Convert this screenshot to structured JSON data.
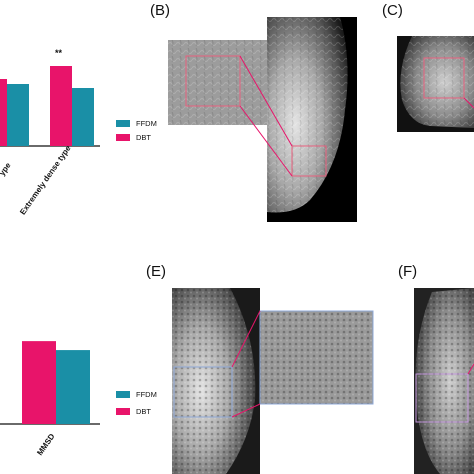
{
  "panels": {
    "b": "(B)",
    "c": "(C)",
    "e": "(E)",
    "f": "(F)"
  },
  "colors": {
    "ffdm": "#1a8fa6",
    "dbt": "#e8146a"
  },
  "legend_top": {
    "ffdm": "FFDM",
    "dbt": "DBT"
  },
  "legend_bottom": {
    "ffdm": "FFDM",
    "dbt": "DBT"
  },
  "significance": "**",
  "chart_data": [
    {
      "type": "bar",
      "categories": [
        "ype",
        "Extremely dense type"
      ],
      "series": [
        {
          "name": "FFDM",
          "values": [
            0.62,
            0.58
          ]
        },
        {
          "name": "DBT",
          "values": [
            0.67,
            0.8
          ]
        }
      ]
    },
    {
      "type": "bar",
      "categories": [
        "MMSD"
      ],
      "series": [
        {
          "name": "FFDM",
          "values": [
            0.66
          ]
        },
        {
          "name": "DBT",
          "values": [
            0.74
          ]
        }
      ]
    }
  ]
}
